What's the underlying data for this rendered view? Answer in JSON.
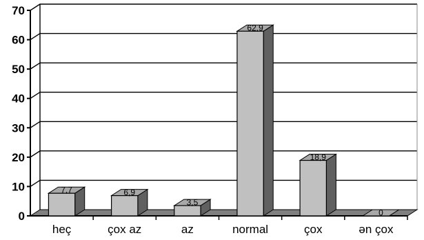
{
  "chart_data": {
    "type": "bar",
    "title": "",
    "xlabel": "",
    "ylabel": "",
    "categories": [
      "heç",
      "çox az",
      "az",
      "normal",
      "çox",
      "ən çox"
    ],
    "values": [
      7.7,
      6.9,
      3.5,
      62.9,
      18.9,
      0
    ],
    "data_labels": [
      "7,7",
      "6,9",
      "3,5",
      "62,9",
      "18,9",
      "0"
    ],
    "ylim": [
      0,
      70
    ],
    "yticks": [
      0,
      10,
      20,
      30,
      40,
      50,
      60,
      70
    ],
    "grid": true,
    "legend": "none",
    "style": "3d-column",
    "colors": {
      "bar_front": "#c0c0c0",
      "bar_top": "#a8a8a8",
      "bar_side": "#606060",
      "floor": "#808080",
      "gridline": "#000000"
    }
  }
}
